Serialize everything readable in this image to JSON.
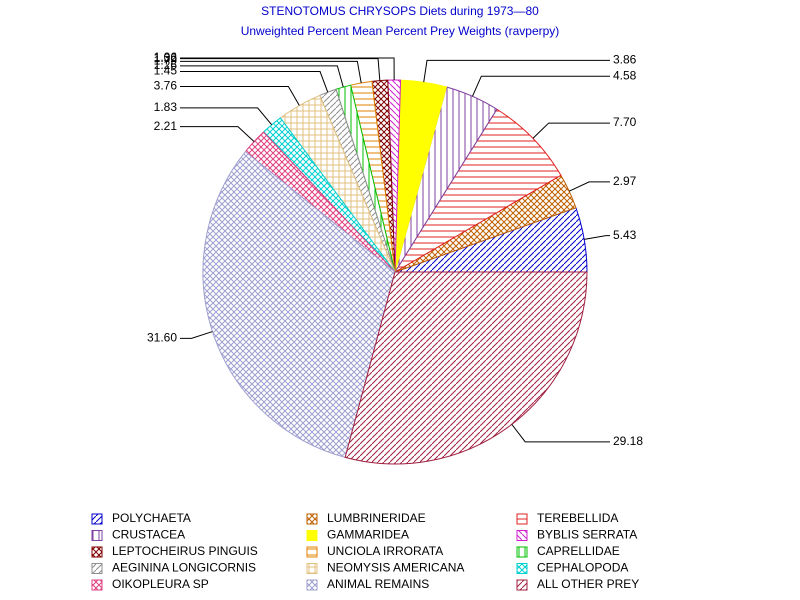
{
  "chart_data": {
    "type": "pie",
    "title": "STENOTOMUS CHRYSOPS Diets during 1973—80",
    "subtitle": "Unweighted Percent Mean Percent Prey  Weights (ravperpy)",
    "categories": [
      "POLYCHAETA",
      "LUMBRINERIDAE",
      "TEREBELLIDA",
      "CRUSTACEA",
      "GAMMARIDEA",
      "BYBLIS SERRATA",
      "LEPTOCHEIRUS PINGUIS",
      "UNCIOLA IRRORATA",
      "CAPRELLIDAE",
      "AEGININA LONGICORNIS",
      "NEOMYSIS AMERICANA",
      "CEPHALOPODA",
      "OIKOPLEURA SP",
      "ANIMAL REMAINS",
      "ALL OTHER PREY"
    ],
    "values": [
      5.43,
      2.97,
      7.7,
      4.58,
      3.86,
      1.06,
      1.32,
      1.79,
      1.26,
      1.45,
      3.76,
      1.83,
      2.21,
      31.6,
      29.18
    ],
    "value_labels": [
      "5.43",
      "2.97",
      "7.70",
      "4.58",
      "3.86",
      "1.06",
      "1.32",
      "1.79",
      "1.26",
      "1.45",
      "3.76",
      "1.83",
      "2.21",
      "31.60",
      "29.18"
    ],
    "colors": [
      "#0000cc",
      "#c06000",
      "#e02020",
      "#8040a0",
      "#ffff00",
      "#d020d0",
      "#800000",
      "#e08000",
      "#00c000",
      "#909090",
      "#e0c080",
      "#00d0d0",
      "#e04080",
      "#a0a0d0",
      "#a02040"
    ],
    "patterns": [
      "diag-up",
      "cross",
      "horizontal",
      "vertical",
      "solid",
      "diag-down",
      "cross",
      "horizontal",
      "vertical",
      "diag-up",
      "grid",
      "cross",
      "cross",
      "cross",
      "diag-up"
    ]
  }
}
